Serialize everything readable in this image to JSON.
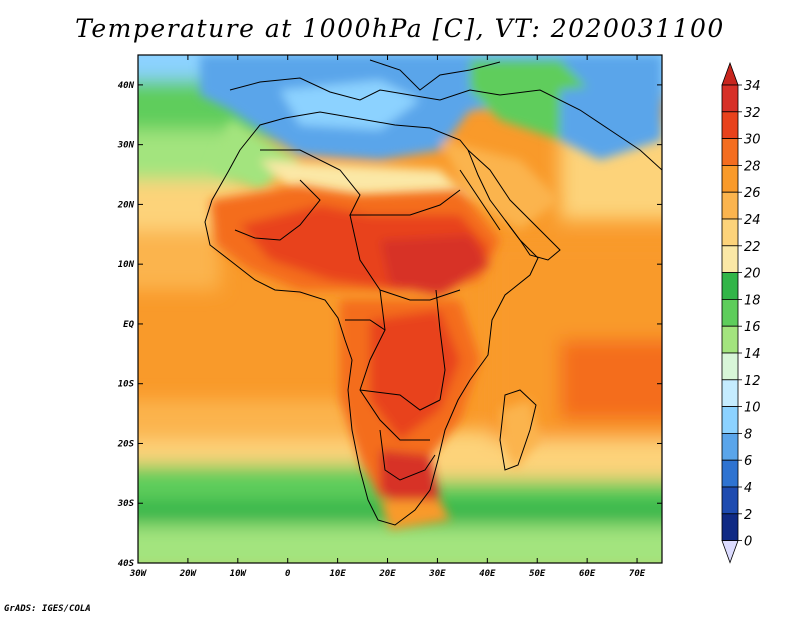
{
  "title": "Temperature at 1000hPa [C], VT: 2020031100",
  "credit": "GrADS: IGES/COLA",
  "map": {
    "lon_range": [
      -30,
      75
    ],
    "lat_range": [
      -40,
      45
    ],
    "x_ticks": [
      "30W",
      "20W",
      "10W",
      "0",
      "10E",
      "20E",
      "30E",
      "40E",
      "50E",
      "60E",
      "70E"
    ],
    "y_ticks": [
      "40N",
      "30N",
      "20N",
      "10N",
      "EQ",
      "10S",
      "20S",
      "30S",
      "40S"
    ]
  },
  "colorbar": {
    "labels": [
      "34",
      "32",
      "30",
      "28",
      "26",
      "24",
      "22",
      "20",
      "18",
      "16",
      "14",
      "12",
      "10",
      "8",
      "6",
      "4",
      "2",
      "0"
    ],
    "colors": [
      "#d73027",
      "#e8421c",
      "#f46d1f",
      "#f99a2a",
      "#fbb44e",
      "#fdd37a",
      "#fbe8a6",
      "#32b548",
      "#5ecd5b",
      "#a3e47e",
      "#d8f6d8",
      "#c5ecff",
      "#8cd2ff",
      "#5aa5ea",
      "#2e73d1",
      "#1e4bb0",
      "#102a84",
      "#0a1260"
    ],
    "over_color": "#c8261e",
    "under_color": "#dcdcff"
  }
}
